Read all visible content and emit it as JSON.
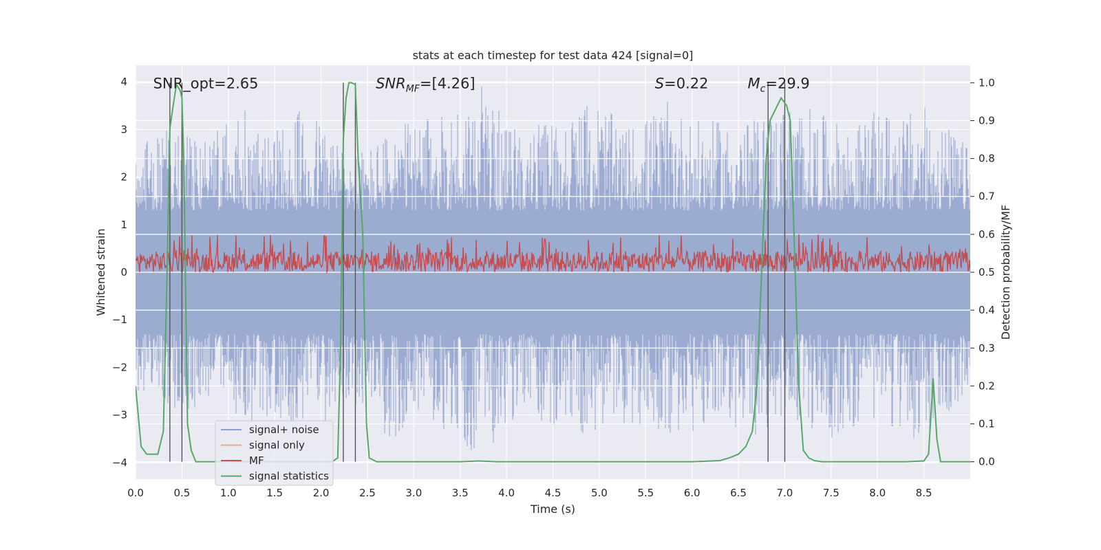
{
  "chart_data": {
    "type": "line",
    "title": "stats at each timestep for test data 424 [signal=0]",
    "xlabel": "Time (s)",
    "ylabel": "Whitened strain",
    "y2label": "Detection probability/MF",
    "xlim": [
      0,
      9
    ],
    "ylim": [
      -4.35,
      4.35
    ],
    "y2lim": [
      -0.046,
      1.046
    ],
    "x_ticks": [
      0.0,
      0.5,
      1.0,
      1.5,
      2.0,
      2.5,
      3.0,
      3.5,
      4.0,
      4.5,
      5.0,
      5.5,
      6.0,
      6.5,
      7.0,
      7.5,
      8.0,
      8.5
    ],
    "x_tick_labels": [
      "0.0",
      "0.5",
      "1.0",
      "1.5",
      "2.0",
      "2.5",
      "3.0",
      "3.5",
      "4.0",
      "4.5",
      "5.0",
      "5.5",
      "6.0",
      "6.5",
      "7.0",
      "7.5",
      "8.0",
      "8.5"
    ],
    "y_ticks": [
      -4,
      -3,
      -2,
      -1,
      0,
      1,
      2,
      3,
      4
    ],
    "y_tick_labels": [
      "−4",
      "−3",
      "−2",
      "−1",
      "0",
      "1",
      "2",
      "3",
      "4"
    ],
    "y2_ticks": [
      0.0,
      0.1,
      0.2,
      0.3,
      0.4,
      0.5,
      0.6,
      0.7,
      0.8,
      0.9,
      1.0
    ],
    "y2_tick_labels": [
      "0.0",
      "0.1",
      "0.2",
      "0.3",
      "0.4",
      "0.5",
      "0.6",
      "0.7",
      "0.8",
      "0.9",
      "1.0"
    ],
    "annotations": [
      {
        "x": 0.19,
        "y": 3.98,
        "text": "SNR_opt=2.65",
        "italic": false
      },
      {
        "x": 2.59,
        "y": 3.98,
        "text": "SNR_MF=[4.26]",
        "italic": true
      },
      {
        "x": 5.6,
        "y": 3.98,
        "text": "S=0.22",
        "italic": true
      },
      {
        "x": 6.6,
        "y": 3.98,
        "text": "M_c=29.9",
        "italic": true
      }
    ],
    "vertical_lines": [
      0.37,
      0.5,
      2.24,
      2.37,
      6.82,
      7.0
    ],
    "legend": {
      "position": "lower-left",
      "entries": [
        {
          "label": "signal+ noise",
          "color": "#8da0cb"
        },
        {
          "label": "signal only",
          "color": "#f4a582"
        },
        {
          "label": "MF",
          "color": "#c44e52"
        },
        {
          "label": "signal statistics",
          "color": "#55a868"
        }
      ]
    },
    "series": [
      {
        "name": "signal+ noise",
        "axis": "left",
        "style": "noise band",
        "x_range": [
          0,
          9
        ],
        "upper_envelope": {
          "x": [
            0.0,
            0.25,
            0.5,
            0.75,
            1.0,
            1.25,
            1.5,
            1.75,
            2.0,
            2.25,
            2.5,
            2.75,
            3.0,
            3.25,
            3.5,
            3.75,
            4.0,
            4.25,
            4.5,
            4.75,
            5.0,
            5.25,
            5.5,
            5.75,
            6.0,
            6.25,
            6.5,
            6.75,
            7.0,
            7.25,
            7.5,
            7.75,
            8.0,
            8.25,
            8.5,
            8.75,
            9.0
          ],
          "y": [
            2.5,
            3.1,
            3.0,
            2.8,
            3.2,
            3.5,
            3.0,
            3.4,
            3.3,
            2.6,
            2.6,
            3.0,
            3.2,
            3.3,
            3.6,
            4.0,
            3.1,
            3.0,
            3.3,
            3.4,
            3.7,
            3.0,
            3.3,
            3.6,
            3.2,
            3.2,
            3.1,
            3.3,
            3.6,
            3.5,
            3.2,
            3.1,
            3.4,
            3.3,
            3.5,
            3.1,
            2.6
          ]
        },
        "lower_envelope": {
          "x": [
            0.0,
            0.25,
            0.5,
            0.75,
            1.0,
            1.25,
            1.5,
            1.75,
            2.0,
            2.25,
            2.5,
            2.75,
            3.0,
            3.25,
            3.5,
            3.75,
            4.0,
            4.25,
            4.5,
            4.75,
            5.0,
            5.25,
            5.5,
            5.75,
            6.0,
            6.25,
            6.5,
            6.75,
            7.0,
            7.25,
            7.5,
            7.75,
            8.0,
            8.25,
            8.5,
            8.75,
            9.0
          ],
          "y": [
            -2.5,
            -2.6,
            -3.4,
            -2.6,
            -2.9,
            -3.2,
            -3.0,
            -3.3,
            -3.2,
            -2.8,
            -2.8,
            -3.7,
            -2.9,
            -3.2,
            -3.6,
            -3.9,
            -3.2,
            -3.0,
            -3.4,
            -3.3,
            -3.6,
            -3.2,
            -3.3,
            -3.5,
            -3.4,
            -3.2,
            -3.3,
            -3.8,
            -3.0,
            -3.3,
            -3.5,
            -3.3,
            -3.1,
            -3.4,
            -3.6,
            -3.2,
            -2.5
          ]
        }
      },
      {
        "name": "signal only",
        "axis": "left",
        "x": [
          0,
          9
        ],
        "y": [
          0,
          0
        ]
      },
      {
        "name": "MF",
        "axis": "right",
        "style": "noisy band",
        "x_range": [
          0,
          9
        ],
        "base_range": [
          0.5,
          0.555
        ],
        "peak_max": 0.6
      },
      {
        "name": "signal statistics",
        "axis": "right",
        "x": [
          0.0,
          0.06,
          0.12,
          0.18,
          0.24,
          0.3,
          0.34,
          0.37,
          0.4,
          0.44,
          0.48,
          0.5,
          0.52,
          0.56,
          0.6,
          0.65,
          0.8,
          1.0,
          1.5,
          2.0,
          2.12,
          2.18,
          2.21,
          2.24,
          2.27,
          2.3,
          2.33,
          2.37,
          2.4,
          2.45,
          2.49,
          2.52,
          2.6,
          3.0,
          3.5,
          3.7,
          3.9,
          4.5,
          5.0,
          5.5,
          6.0,
          6.3,
          6.4,
          6.5,
          6.58,
          6.65,
          6.7,
          6.75,
          6.8,
          6.84,
          6.9,
          6.96,
          7.02,
          7.06,
          7.1,
          7.15,
          7.2,
          7.26,
          7.32,
          7.4,
          7.5,
          7.6,
          8.0,
          8.3,
          8.5,
          8.55,
          8.6,
          8.64,
          8.68,
          8.75,
          8.9,
          9.0
        ],
        "y": [
          0.2,
          0.04,
          0.02,
          0.02,
          0.02,
          0.08,
          0.5,
          0.88,
          0.93,
          0.995,
          0.98,
          0.96,
          0.8,
          0.1,
          0.03,
          0.0,
          0.0,
          0.0,
          0.0,
          0.0,
          0.0,
          0.01,
          0.3,
          0.85,
          0.96,
          1.0,
          1.0,
          0.995,
          0.8,
          0.6,
          0.1,
          0.01,
          0.0,
          0.0,
          0.0,
          0.002,
          0.0,
          0.0,
          0.0,
          0.0,
          0.0,
          0.003,
          0.01,
          0.02,
          0.04,
          0.08,
          0.2,
          0.5,
          0.8,
          0.9,
          0.93,
          0.96,
          0.94,
          0.9,
          0.6,
          0.2,
          0.03,
          0.01,
          0.003,
          0.0,
          0.0,
          0.0,
          0.0,
          0.0,
          0.002,
          0.02,
          0.22,
          0.06,
          0.0,
          0.0,
          0.0,
          0.0
        ]
      }
    ]
  }
}
